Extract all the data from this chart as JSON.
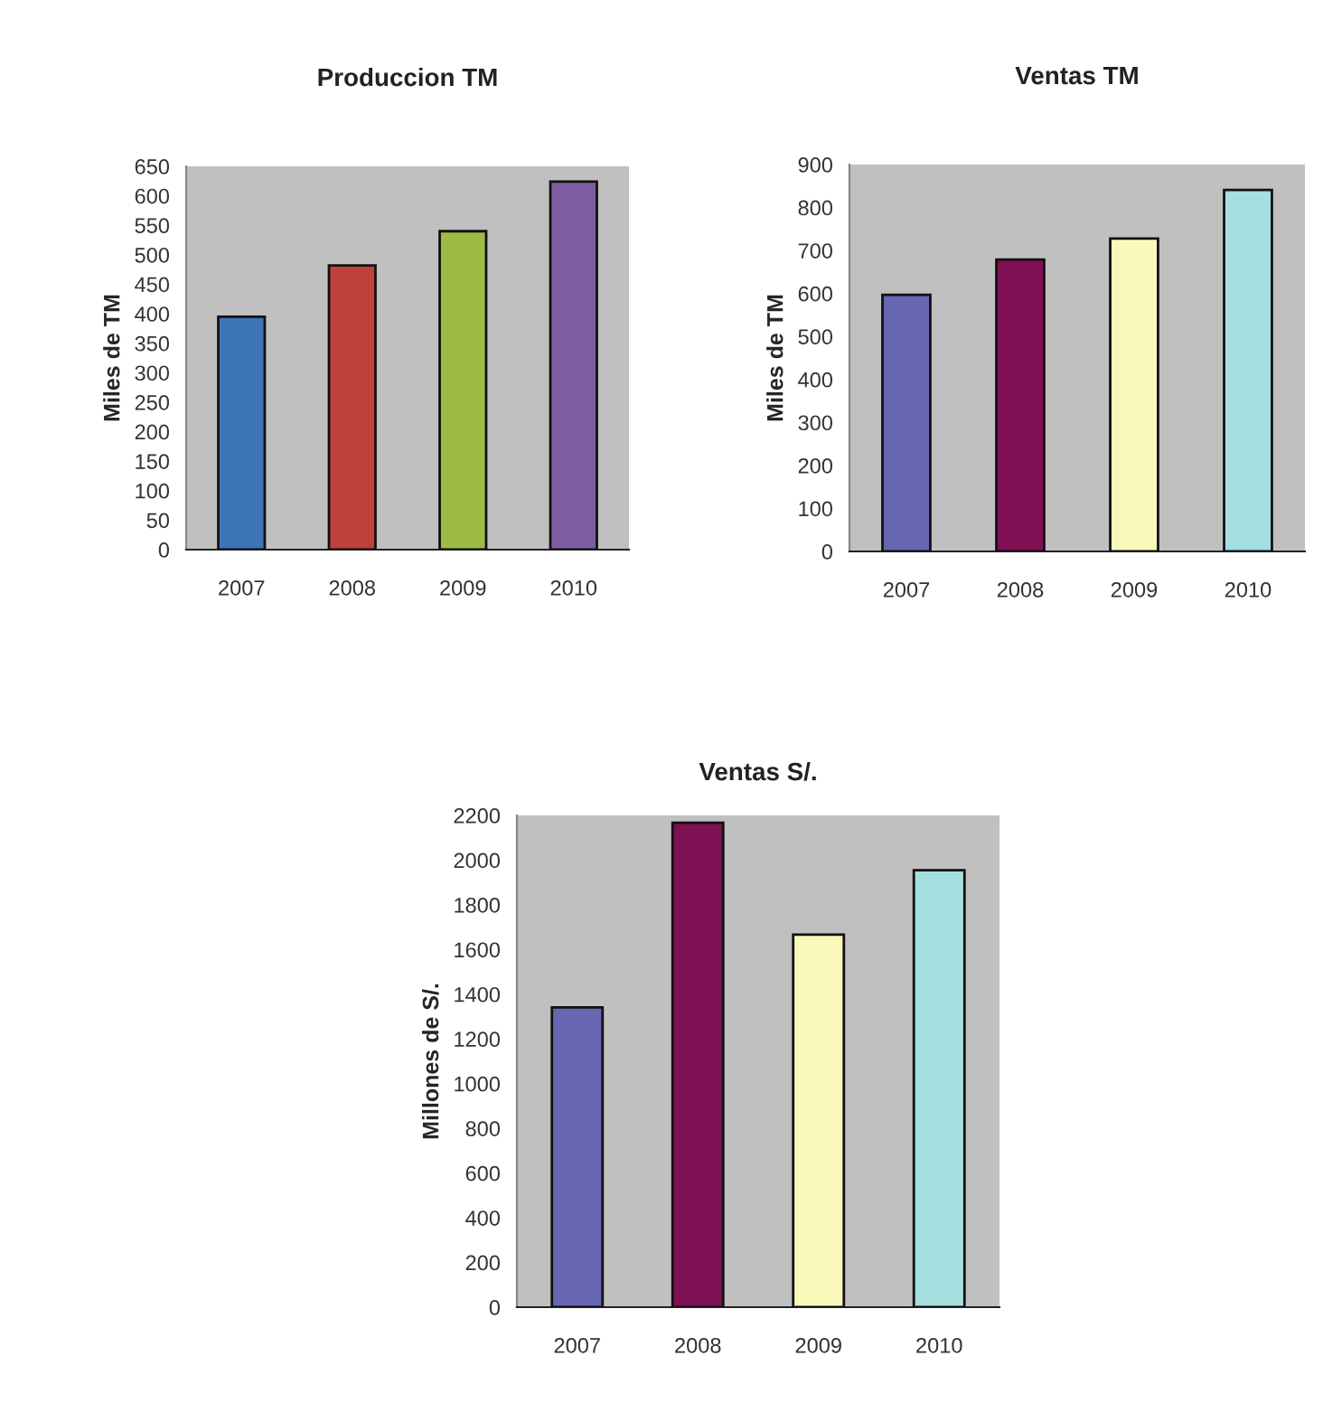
{
  "chart_data": [
    {
      "type": "bar",
      "title": "Produccion TM",
      "ylabel": "Miles de TM",
      "categories": [
        "2007",
        "2008",
        "2009",
        "2010"
      ],
      "values": [
        395,
        482,
        540,
        624
      ],
      "colors": [
        "#3d74b8",
        "#c0403c",
        "#9bbb45",
        "#7d5ea0"
      ],
      "ylim": [
        0,
        650
      ],
      "yticks": [
        0,
        50,
        100,
        150,
        200,
        250,
        300,
        350,
        400,
        450,
        500,
        550,
        600,
        650
      ],
      "grid": false
    },
    {
      "type": "bar",
      "title": "Ventas TM",
      "ylabel": "Miles de TM",
      "categories": [
        "2007",
        "2008",
        "2009",
        "2010"
      ],
      "values": [
        597,
        679,
        728,
        841
      ],
      "colors": [
        "#6666b3",
        "#7f1054",
        "#fbf8bc",
        "#a6dfe0"
      ],
      "ylim": [
        0,
        900
      ],
      "yticks": [
        0,
        100,
        200,
        300,
        400,
        500,
        600,
        700,
        800,
        900
      ],
      "grid": false
    },
    {
      "type": "bar",
      "title": "Ventas S/.",
      "ylabel": "Millones de S/.",
      "categories": [
        "2007",
        "2008",
        "2009",
        "2010"
      ],
      "values": [
        1341,
        2167,
        1667,
        1955
      ],
      "colors": [
        "#6666b3",
        "#7f1054",
        "#fbf8bc",
        "#a6dfe0"
      ],
      "ylim": [
        0,
        2200
      ],
      "yticks": [
        0,
        200,
        400,
        600,
        800,
        1000,
        1200,
        1400,
        1600,
        1800,
        2000,
        2200
      ],
      "grid": false
    }
  ]
}
